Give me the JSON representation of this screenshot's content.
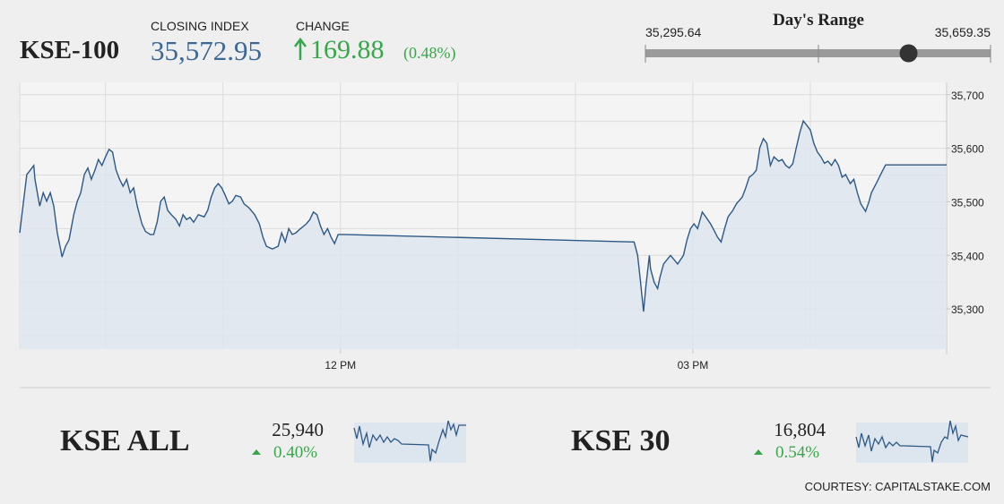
{
  "header": {
    "name": "KSE-100",
    "closing_title": "CLOSING INDEX",
    "closing": {
      "value": 35572.95,
      "label": "35,572.95"
    },
    "change_title": "CHANGE",
    "change": "169.88",
    "change_pct": "(0.48%)"
  },
  "day_range": {
    "title": "Day's Range",
    "low": {
      "value": 35295.64,
      "label": "35,295.64"
    },
    "high": {
      "value": 35659.35,
      "label": "35,659.35"
    }
  },
  "chart_data": {
    "type": "line",
    "x": [
      9.27,
      9.33,
      9.36,
      9.39,
      9.4,
      9.44,
      9.47,
      9.5,
      9.53,
      9.56,
      9.59,
      9.62,
      9.63,
      9.66,
      9.69,
      9.73,
      9.76,
      9.79,
      9.82,
      9.85,
      9.88,
      9.91,
      9.94,
      9.97,
      10.0,
      10.03,
      10.06,
      10.09,
      10.12,
      10.15,
      10.18,
      10.21,
      10.24,
      10.27,
      10.31,
      10.34,
      10.38,
      10.41,
      10.44,
      10.47,
      10.5,
      10.53,
      10.56,
      10.6,
      10.63,
      10.66,
      10.69,
      10.72,
      10.75,
      10.79,
      10.84,
      10.87,
      10.9,
      10.93,
      10.96,
      10.99,
      11.02,
      11.05,
      11.08,
      11.11,
      11.15,
      11.18,
      11.22,
      11.27,
      11.31,
      11.34,
      11.37,
      11.42,
      11.47,
      11.5,
      11.53,
      11.56,
      11.59,
      11.62,
      11.66,
      11.71,
      11.74,
      11.77,
      11.8,
      11.83,
      11.86,
      11.89,
      11.92,
      11.95,
      11.98,
      12.03,
      14.5,
      14.53,
      14.55,
      14.58,
      14.6,
      14.63,
      14.64,
      14.67,
      14.7,
      14.72,
      14.75,
      14.78,
      14.81,
      14.84,
      14.87,
      14.92,
      14.95,
      14.98,
      15.01,
      15.04,
      15.08,
      15.11,
      15.15,
      15.18,
      15.21,
      15.24,
      15.27,
      15.3,
      15.34,
      15.37,
      15.42,
      15.45,
      15.48,
      15.51,
      15.54,
      15.57,
      15.6,
      15.63,
      15.66,
      15.69,
      15.73,
      15.76,
      15.79,
      15.82,
      15.85,
      15.88,
      15.91,
      15.94,
      15.97,
      16.0,
      16.03,
      16.06,
      16.09,
      16.12,
      16.15,
      16.18,
      16.21,
      16.24,
      16.27,
      16.3,
      16.34,
      16.37,
      16.4,
      16.43,
      16.47,
      16.5,
      16.52,
      16.56,
      16.61,
      16.64,
      17.16
    ],
    "series": [
      {
        "color": "#2d5986",
        "fill": "#dde5ee",
        "values": [
          35442,
          35551,
          35559,
          35568,
          35542,
          35492,
          35517,
          35501,
          35517,
          35492,
          35442,
          35409,
          35397,
          35417,
          35429,
          35476,
          35501,
          35517,
          35551,
          35563,
          35542,
          35559,
          35579,
          35568,
          35584,
          35598,
          35593,
          35559,
          35542,
          35529,
          35542,
          35517,
          35526,
          35492,
          35459,
          35445,
          35439,
          35439,
          35462,
          35501,
          35509,
          35484,
          35476,
          35467,
          35455,
          35476,
          35467,
          35471,
          35462,
          35476,
          35472,
          35484,
          35509,
          35526,
          35534,
          35526,
          35512,
          35496,
          35501,
          35512,
          35509,
          35496,
          35489,
          35476,
          35459,
          35434,
          35417,
          35412,
          35417,
          35442,
          35425,
          35450,
          35439,
          35442,
          35450,
          35459,
          35467,
          35481,
          35476,
          35455,
          35439,
          35450,
          35434,
          35422,
          35439,
          35439,
          35425,
          35400,
          35359,
          35295,
          35342,
          35400,
          35375,
          35350,
          35338,
          35359,
          35384,
          35392,
          35400,
          35392,
          35384,
          35400,
          35429,
          35450,
          35459,
          35450,
          35481,
          35472,
          35459,
          35447,
          35434,
          35425,
          35450,
          35472,
          35484,
          35496,
          35509,
          35526,
          35546,
          35551,
          35559,
          35601,
          35618,
          35609,
          35568,
          35584,
          35576,
          35579,
          35568,
          35563,
          35571,
          35601,
          35629,
          35651,
          35643,
          35634,
          35609,
          35593,
          35584,
          35572,
          35576,
          35568,
          35579,
          35568,
          35546,
          35551,
          35534,
          35542,
          35517,
          35496,
          35482,
          35501,
          35517,
          35534,
          35556,
          35569,
          35569
        ]
      }
    ],
    "xlim": [
      9.27,
      17.16
    ],
    "xticks": [
      {
        "value": 12,
        "label": "12 PM"
      },
      {
        "value": 15,
        "label": "03 PM"
      }
    ],
    "xgrid": [
      10,
      11,
      12,
      13,
      14,
      15,
      16
    ],
    "ylim": [
      35225,
      35723
    ],
    "yticks": [
      {
        "value": 35300,
        "label": "35,300"
      },
      {
        "value": 35400,
        "label": "35,400"
      },
      {
        "value": 35500,
        "label": "35,500"
      },
      {
        "value": 35600,
        "label": "35,600"
      },
      {
        "value": 35700,
        "label": "35,700"
      }
    ],
    "ygrid": [
      35250,
      35300,
      35350,
      35400,
      35450,
      35500,
      35550,
      35600,
      35650,
      35700
    ]
  },
  "indices": [
    {
      "name": "KSE ALL",
      "value": "25,940",
      "change": "0.40%"
    },
    {
      "name": "KSE 30",
      "value": "16,804",
      "change": "0.54%"
    }
  ],
  "footer": "COURTESY: CAPITALSTAKE.COM"
}
